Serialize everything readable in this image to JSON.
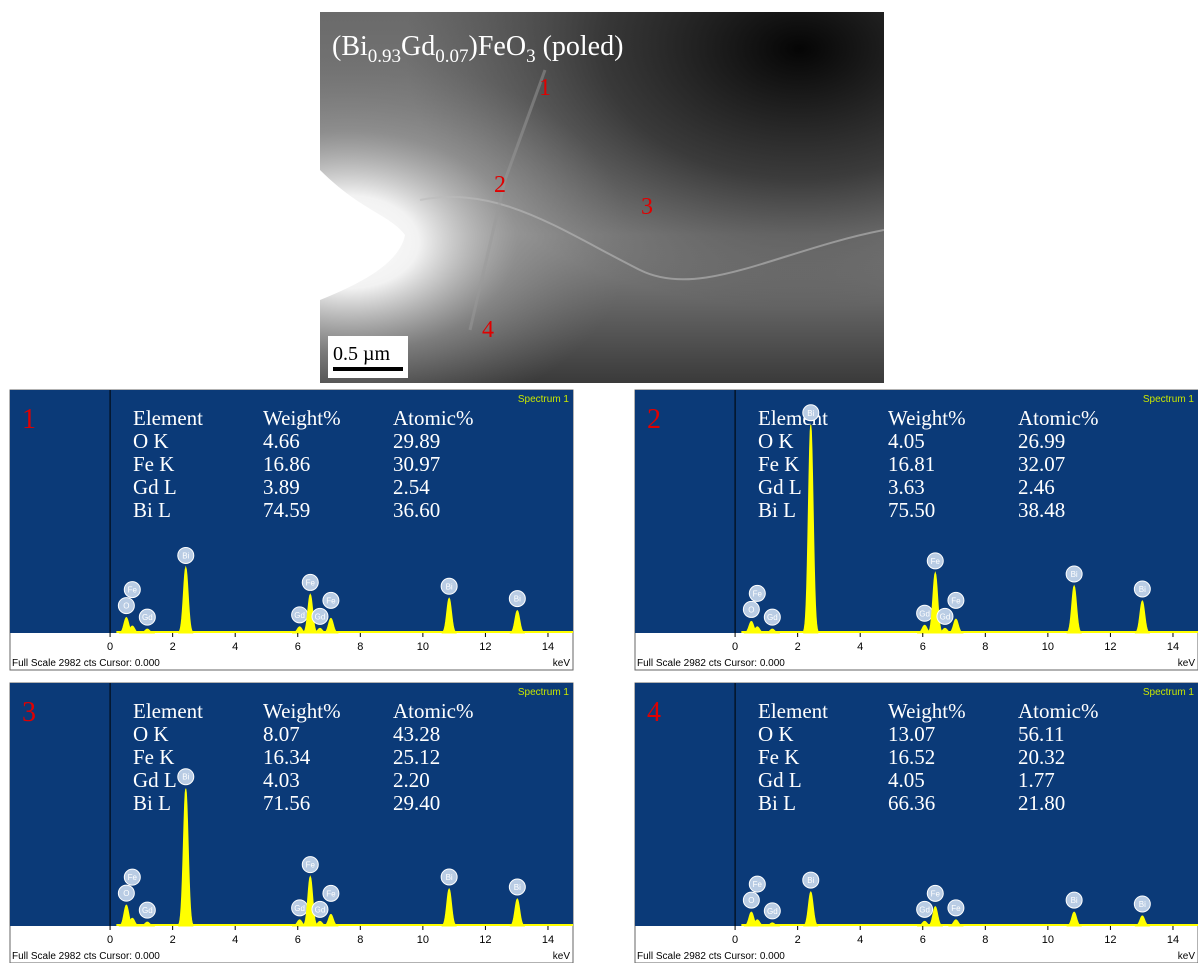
{
  "figure": {
    "image": {
      "title": [
        "(Bi",
        "0.93",
        "Gd",
        "0.07",
        ")FeO",
        "3",
        " (poled)"
      ],
      "points": [
        "1",
        "2",
        "3",
        "4"
      ],
      "scale_bar": "0.5 µm"
    },
    "panels": [
      {
        "label": "1",
        "spectrum": "Spectrum 1",
        "header": [
          "Element",
          "Weight%",
          "Atomic%"
        ],
        "rows": [
          [
            "O K",
            "4.66",
            "29.89"
          ],
          [
            "Fe K",
            "16.86",
            "30.97"
          ],
          [
            "Gd L",
            "3.89",
            "2.54"
          ],
          [
            "Bi L",
            "74.59",
            "36.60"
          ]
        ],
        "footer": "Full Scale 2982 cts Cursor: 0.000",
        "unit": "keV",
        "full_scale": 2982,
        "xlim": [
          -3.2,
          14.8
        ],
        "xticks": [
          0,
          2,
          4,
          6,
          8,
          10,
          12,
          14
        ],
        "peaks": [
          {
            "label": "O",
            "x": 0.52,
            "y": 200
          },
          {
            "label": "Fe",
            "x": 0.71,
            "y": 90
          },
          {
            "label": "Gd",
            "x": 1.19,
            "y": 50
          },
          {
            "label": "Bi",
            "x": 2.42,
            "y": 850
          },
          {
            "label": "Gd",
            "x": 6.06,
            "y": 80
          },
          {
            "label": "Fe",
            "x": 6.4,
            "y": 500
          },
          {
            "label": "Gd",
            "x": 6.71,
            "y": 60
          },
          {
            "label": "Fe",
            "x": 7.06,
            "y": 190
          },
          {
            "label": "Bi",
            "x": 10.84,
            "y": 450
          },
          {
            "label": "Bi",
            "x": 13.02,
            "y": 290
          }
        ]
      },
      {
        "label": "2",
        "spectrum": "Spectrum 1",
        "header": [
          "Element",
          "Weight%",
          "Atomic%"
        ],
        "rows": [
          [
            "O K",
            "4.05",
            "26.99"
          ],
          [
            "Fe K",
            "16.81",
            "32.07"
          ],
          [
            "Gd L",
            "3.63",
            "2.46"
          ],
          [
            "Bi L",
            "75.50",
            "38.48"
          ]
        ],
        "footer": "Full Scale 2982 cts Cursor: 0.000",
        "unit": "keV",
        "full_scale": 2982,
        "xlim": [
          -3.2,
          14.8
        ],
        "xticks": [
          0,
          2,
          4,
          6,
          8,
          10,
          12,
          14
        ],
        "peaks": [
          {
            "label": "O",
            "x": 0.52,
            "y": 150
          },
          {
            "label": "Fe",
            "x": 0.71,
            "y": 80
          },
          {
            "label": "Gd",
            "x": 1.19,
            "y": 50
          },
          {
            "label": "Bi",
            "x": 2.42,
            "y": 2700
          },
          {
            "label": "Gd",
            "x": 6.06,
            "y": 100
          },
          {
            "label": "Fe",
            "x": 6.4,
            "y": 780
          },
          {
            "label": "Gd",
            "x": 6.71,
            "y": 60
          },
          {
            "label": "Fe",
            "x": 7.06,
            "y": 180
          },
          {
            "label": "Bi",
            "x": 10.84,
            "y": 610
          },
          {
            "label": "Bi",
            "x": 13.02,
            "y": 415
          }
        ]
      },
      {
        "label": "3",
        "spectrum": "Spectrum 1",
        "header": [
          "Element",
          "Weight%",
          "Atomic%"
        ],
        "rows": [
          [
            "O K",
            "8.07",
            "43.28"
          ],
          [
            "Fe K",
            "16.34",
            "25.12"
          ],
          [
            "Gd L",
            "4.03",
            "2.20"
          ],
          [
            "Bi L",
            "71.56",
            "29.40"
          ]
        ],
        "footer": "Full Scale 2982 cts Cursor: 0.000",
        "unit": "keV",
        "full_scale": 2982,
        "xlim": [
          -3.2,
          14.8
        ],
        "xticks": [
          0,
          2,
          4,
          6,
          8,
          10,
          12,
          14
        ],
        "peaks": [
          {
            "label": "O",
            "x": 0.52,
            "y": 270
          },
          {
            "label": "Fe",
            "x": 0.71,
            "y": 100
          },
          {
            "label": "Gd",
            "x": 1.19,
            "y": 50
          },
          {
            "label": "Bi",
            "x": 2.42,
            "y": 1780
          },
          {
            "label": "Gd",
            "x": 6.06,
            "y": 80
          },
          {
            "label": "Fe",
            "x": 6.4,
            "y": 640
          },
          {
            "label": "Gd",
            "x": 6.71,
            "y": 60
          },
          {
            "label": "Fe",
            "x": 7.06,
            "y": 150
          },
          {
            "label": "Bi",
            "x": 10.84,
            "y": 480
          },
          {
            "label": "Bi",
            "x": 13.02,
            "y": 350
          }
        ]
      },
      {
        "label": "4",
        "spectrum": "Spectrum 1",
        "header": [
          "Element",
          "Weight%",
          "Atomic%"
        ],
        "rows": [
          [
            "O K",
            "13.07",
            "56.11"
          ],
          [
            "Fe K",
            "16.52",
            "20.32"
          ],
          [
            "Gd L",
            "4.05",
            "1.77"
          ],
          [
            "Bi L",
            "66.36",
            "21.80"
          ]
        ],
        "footer": "Full Scale 2982 cts Cursor: 0.000",
        "unit": "keV",
        "full_scale": 2982,
        "xlim": [
          -3.2,
          14.8
        ],
        "xticks": [
          0,
          2,
          4,
          6,
          8,
          10,
          12,
          14
        ],
        "peaks": [
          {
            "label": "O",
            "x": 0.52,
            "y": 180
          },
          {
            "label": "Fe",
            "x": 0.71,
            "y": 80
          },
          {
            "label": "Gd",
            "x": 1.19,
            "y": 40
          },
          {
            "label": "Bi",
            "x": 2.42,
            "y": 440
          },
          {
            "label": "Gd",
            "x": 6.06,
            "y": 60
          },
          {
            "label": "Fe",
            "x": 6.4,
            "y": 250
          },
          {
            "label": "Fe",
            "x": 7.06,
            "y": 80
          },
          {
            "label": "Bi",
            "x": 10.84,
            "y": 180
          },
          {
            "label": "Bi",
            "x": 13.02,
            "y": 130
          }
        ]
      }
    ]
  }
}
